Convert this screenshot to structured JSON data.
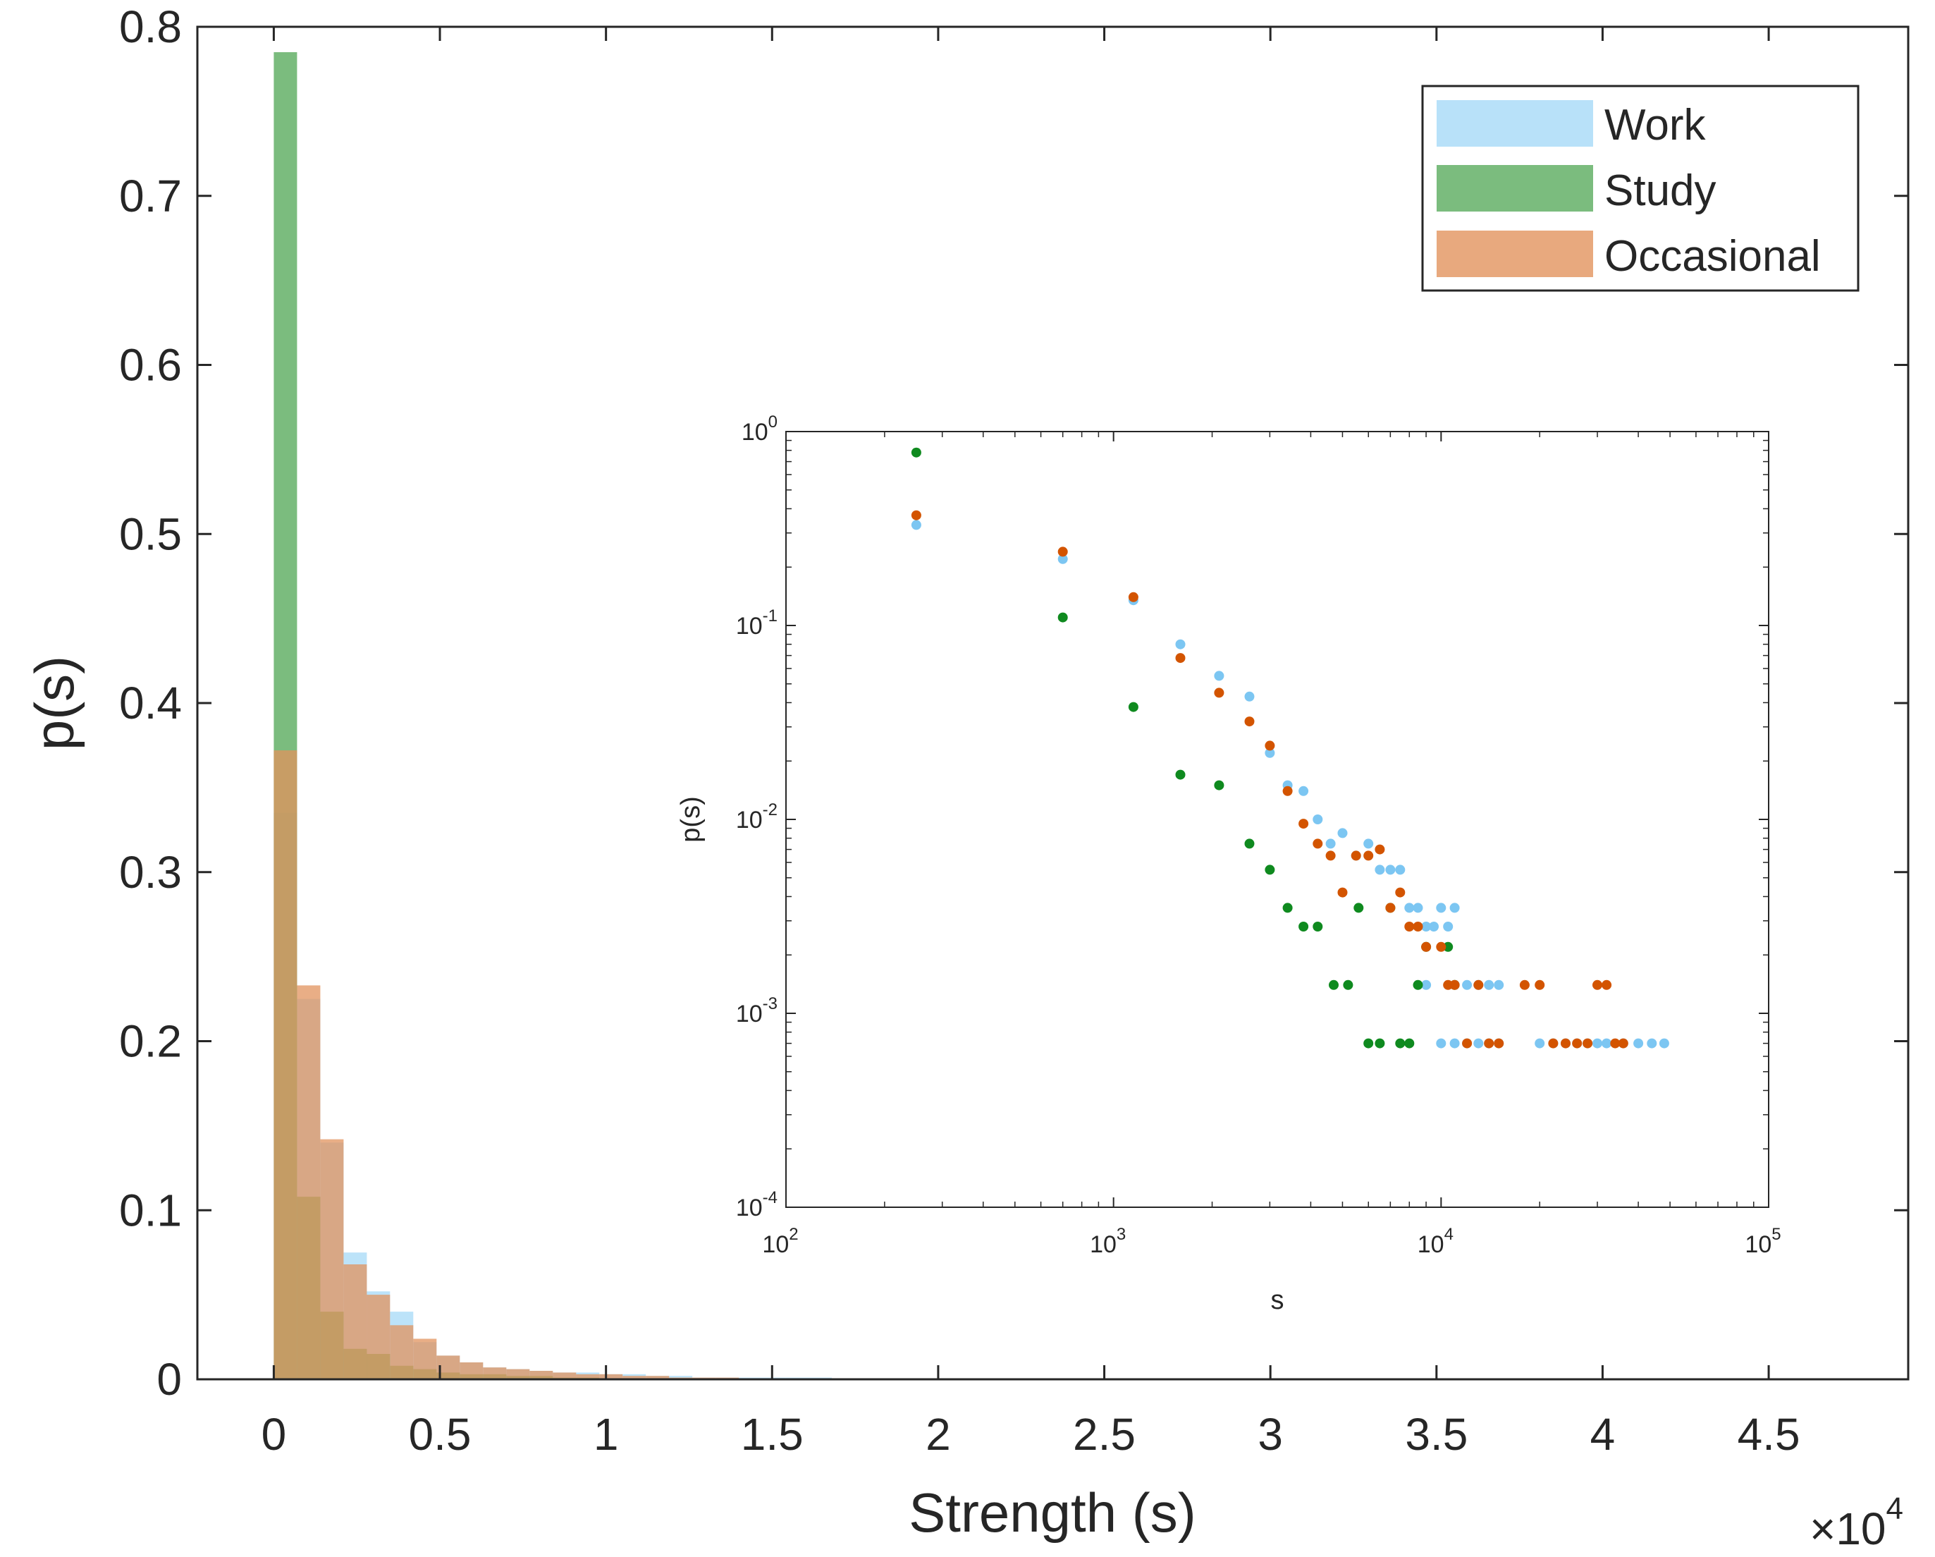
{
  "chart_data": [
    {
      "type": "bar",
      "name": "main-histogram",
      "title": "",
      "xlabel": "Strength (s)",
      "ylabel": "p(s)",
      "x_exponent_label": {
        "base": "×10",
        "exp": "4"
      },
      "xlim": [
        -0.23,
        4.92
      ],
      "ylim": [
        0,
        0.8
      ],
      "xticks": [
        0,
        0.5,
        1,
        1.5,
        2,
        2.5,
        3,
        3.5,
        4,
        4.5
      ],
      "xtick_labels": [
        "0",
        "0.5",
        "1",
        "1.5",
        "2",
        "2.5",
        "3",
        "3.5",
        "4",
        "4.5"
      ],
      "yticks": [
        0,
        0.1,
        0.2,
        0.3,
        0.4,
        0.5,
        0.6,
        0.7,
        0.8
      ],
      "ytick_labels": [
        "0",
        "0.1",
        "0.2",
        "0.3",
        "0.4",
        "0.5",
        "0.6",
        "0.7",
        "0.8"
      ],
      "bin_start": 0,
      "bin_width": 0.07,
      "legend": {
        "position": "top-right",
        "entries": [
          {
            "label": "Work",
            "color": "#a6d9f7"
          },
          {
            "label": "Study",
            "color": "#5aab5e"
          },
          {
            "label": "Occasional",
            "color": "#e2935e"
          }
        ]
      },
      "series": [
        {
          "name": "Work",
          "color": "#a6d9f7",
          "opacity": 0.75,
          "values": [
            0.335,
            0.225,
            0.14,
            0.075,
            0.052,
            0.04,
            0.022,
            0.014,
            0.01,
            0.007,
            0.006,
            0.005,
            0.004,
            0.004,
            0.003,
            0.003,
            0.002,
            0.002,
            0.001,
            0.001,
            0.001,
            0.001,
            0.001,
            0.001
          ]
        },
        {
          "name": "Study",
          "color": "#5aab5e",
          "opacity": 0.8,
          "values": [
            0.785,
            0.108,
            0.04,
            0.018,
            0.015,
            0.008,
            0.006,
            0.004,
            0.003,
            0.003,
            0.002,
            0.002,
            0.001,
            0.001
          ]
        },
        {
          "name": "Occasional",
          "color": "#e2935e",
          "opacity": 0.75,
          "values": [
            0.372,
            0.233,
            0.142,
            0.068,
            0.05,
            0.032,
            0.024,
            0.014,
            0.01,
            0.007,
            0.006,
            0.005,
            0.004,
            0.003,
            0.003,
            0.002,
            0.002,
            0.001,
            0.001,
            0.001
          ]
        }
      ]
    },
    {
      "type": "scatter",
      "name": "inset-loglog",
      "title": "",
      "xlabel": "s",
      "ylabel": "p(s)",
      "xscale": "log",
      "yscale": "log",
      "xlim": [
        100,
        100000
      ],
      "ylim": [
        0.0001,
        1
      ],
      "xticks": [
        100,
        1000,
        10000,
        100000
      ],
      "xtick_labels": [
        {
          "base": "10",
          "exp": "2"
        },
        {
          "base": "10",
          "exp": "3"
        },
        {
          "base": "10",
          "exp": "4"
        },
        {
          "base": "10",
          "exp": "5"
        }
      ],
      "yticks": [
        0.0001,
        0.001,
        0.01,
        0.1,
        1
      ],
      "ytick_labels": [
        {
          "base": "10",
          "exp": "-4"
        },
        {
          "base": "10",
          "exp": "-3"
        },
        {
          "base": "10",
          "exp": "-2"
        },
        {
          "base": "10",
          "exp": "-1"
        },
        {
          "base": "10",
          "exp": "0"
        }
      ],
      "series": [
        {
          "name": "Work",
          "color": "#7cc6f2",
          "x": [
            250,
            700,
            1150,
            1600,
            2100,
            2600,
            3000,
            3400,
            3800,
            4200,
            4600,
            5000,
            5500,
            6000,
            6500,
            7000,
            7500,
            8000,
            8500,
            9000,
            9500,
            10000,
            10500,
            11000,
            12000,
            13000,
            14000,
            15000,
            9000,
            10000,
            11000,
            12000,
            13000,
            14000,
            15000,
            20000,
            22000,
            24000,
            26000,
            28000,
            30000,
            32000,
            36000,
            40000,
            44000,
            48000
          ],
          "y": [
            0.33,
            0.22,
            0.135,
            0.08,
            0.055,
            0.043,
            0.022,
            0.015,
            0.014,
            0.01,
            0.0075,
            0.0085,
            0.0065,
            0.0075,
            0.0055,
            0.0055,
            0.0055,
            0.0035,
            0.0035,
            0.0028,
            0.0028,
            0.0035,
            0.0028,
            0.0035,
            0.0014,
            0.0014,
            0.0014,
            0.0014,
            0.0014,
            0.0007,
            0.0007,
            0.0007,
            0.0007,
            0.0007,
            0.0007,
            0.0007,
            0.0007,
            0.0007,
            0.0007,
            0.0007,
            0.0007,
            0.0007,
            0.0007,
            0.0007,
            0.0007,
            0.0007
          ]
        },
        {
          "name": "Study",
          "color": "#0f8a1f",
          "x": [
            250,
            700,
            1150,
            1600,
            2100,
            2600,
            3000,
            3400,
            3800,
            4200,
            4700,
            5200,
            5600,
            6000,
            6500,
            7000,
            7500,
            8000,
            8500,
            9000,
            10500,
            11000
          ],
          "y": [
            0.78,
            0.11,
            0.038,
            0.017,
            0.015,
            0.0075,
            0.0055,
            0.0035,
            0.0028,
            0.0028,
            0.0014,
            0.0014,
            0.0035,
            0.0007,
            0.0007,
            0.0035,
            0.0007,
            0.0007,
            0.0014,
            0.0022,
            0.0022,
            0.0014
          ]
        },
        {
          "name": "Occasional",
          "color": "#d35400",
          "x": [
            250,
            700,
            1150,
            1600,
            2100,
            2600,
            3000,
            3400,
            3800,
            4200,
            4600,
            5000,
            5500,
            6000,
            6500,
            7000,
            7500,
            8000,
            8500,
            9000,
            10000,
            10500,
            11000,
            12000,
            13000,
            14000,
            15000,
            18000,
            20000,
            22000,
            24000,
            26000,
            28000,
            30000,
            32000,
            34000,
            36000
          ],
          "y": [
            0.37,
            0.24,
            0.14,
            0.068,
            0.045,
            0.032,
            0.024,
            0.014,
            0.0095,
            0.0075,
            0.0065,
            0.0042,
            0.0065,
            0.0065,
            0.007,
            0.0035,
            0.0042,
            0.0028,
            0.0028,
            0.0022,
            0.0022,
            0.0014,
            0.0014,
            0.0007,
            0.0014,
            0.0007,
            0.0007,
            0.0014,
            0.0014,
            0.0007,
            0.0007,
            0.0007,
            0.0007,
            0.0014,
            0.0014,
            0.0007,
            0.0007
          ]
        }
      ]
    }
  ]
}
